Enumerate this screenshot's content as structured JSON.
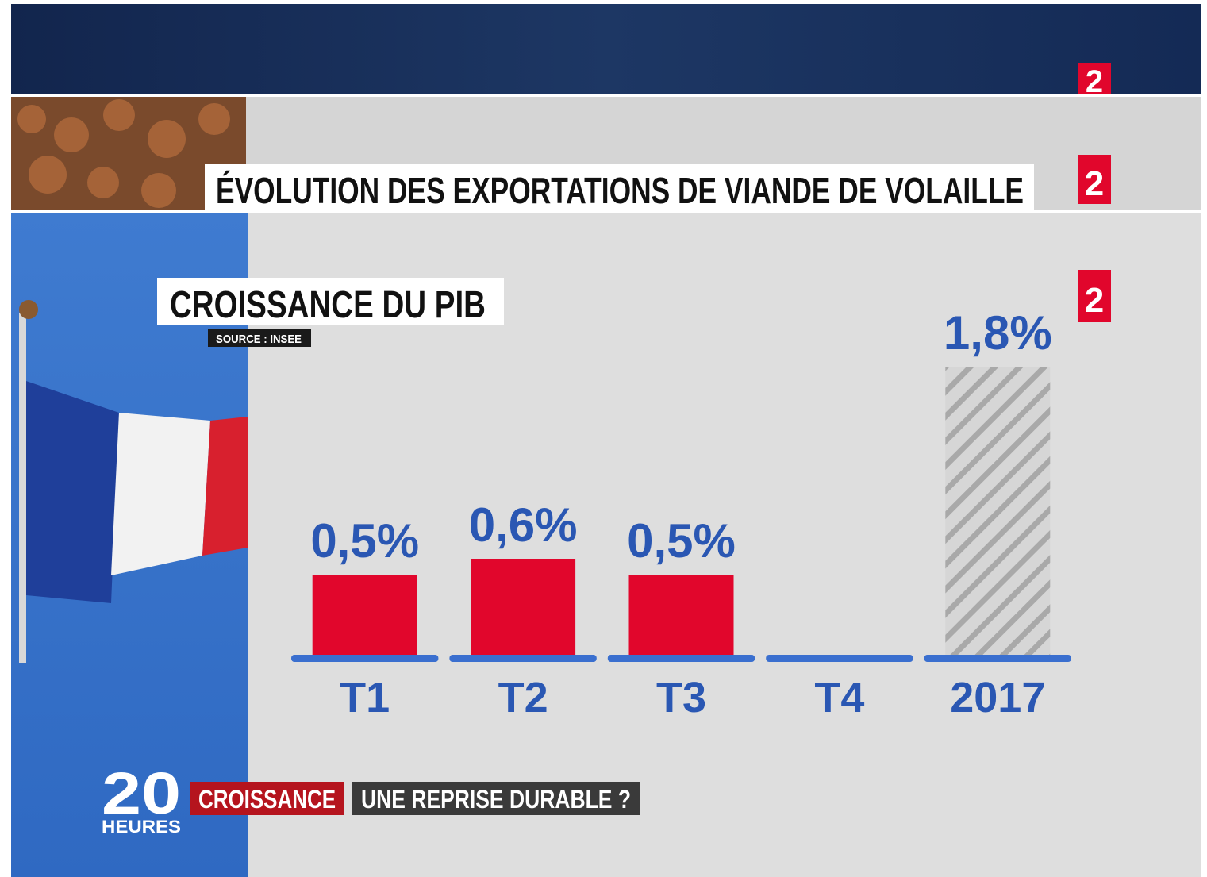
{
  "chart_data": {
    "type": "bar",
    "title": "CROISSANCE DU PIB",
    "subtitle": "SOURCE : INSEE",
    "categories": [
      "T1",
      "T2",
      "T3",
      "T4",
      "2017"
    ],
    "values": [
      0.5,
      0.6,
      0.5,
      null,
      1.8
    ],
    "value_labels": [
      "0,5%",
      "0,6%",
      "0,5%",
      null,
      "1,8%"
    ],
    "hatched": [
      false,
      false,
      false,
      false,
      true
    ],
    "color": "#e1062c",
    "hatch_color": "#b4b4b4",
    "label_color": "#2a57b3"
  },
  "banner": {
    "title": "ÉVOLUTION DES EXPORTATIONS DE VIANDE DE VOLAILLE"
  },
  "logos": [
    "2",
    "2",
    "2"
  ],
  "lower_third": {
    "show_number": "20",
    "show_word": "HEURES",
    "topic": "CROISSANCE",
    "headline": "UNE REPRISE DURABLE ?"
  }
}
